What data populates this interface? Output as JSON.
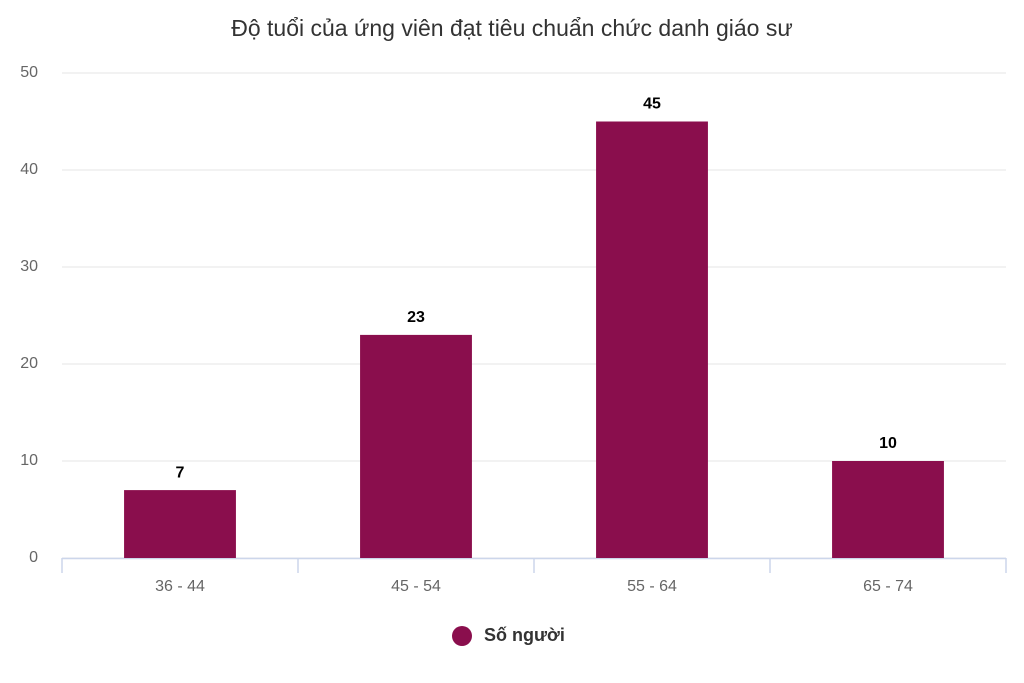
{
  "chart_data": {
    "type": "bar",
    "title": "Độ tuổi của ứng viên đạt tiêu chuẩn chức danh giáo sư",
    "categories": [
      "36 - 44",
      "45 - 54",
      "55 - 64",
      "65 - 74"
    ],
    "series": [
      {
        "name": "Số người",
        "color": "#8a0e4d",
        "values": [
          7,
          23,
          45,
          10
        ]
      }
    ],
    "ylim": [
      0,
      50
    ],
    "yticks": [
      0,
      10,
      20,
      30,
      40,
      50
    ],
    "grid": true,
    "data_labels": true,
    "legend": "bottom"
  }
}
